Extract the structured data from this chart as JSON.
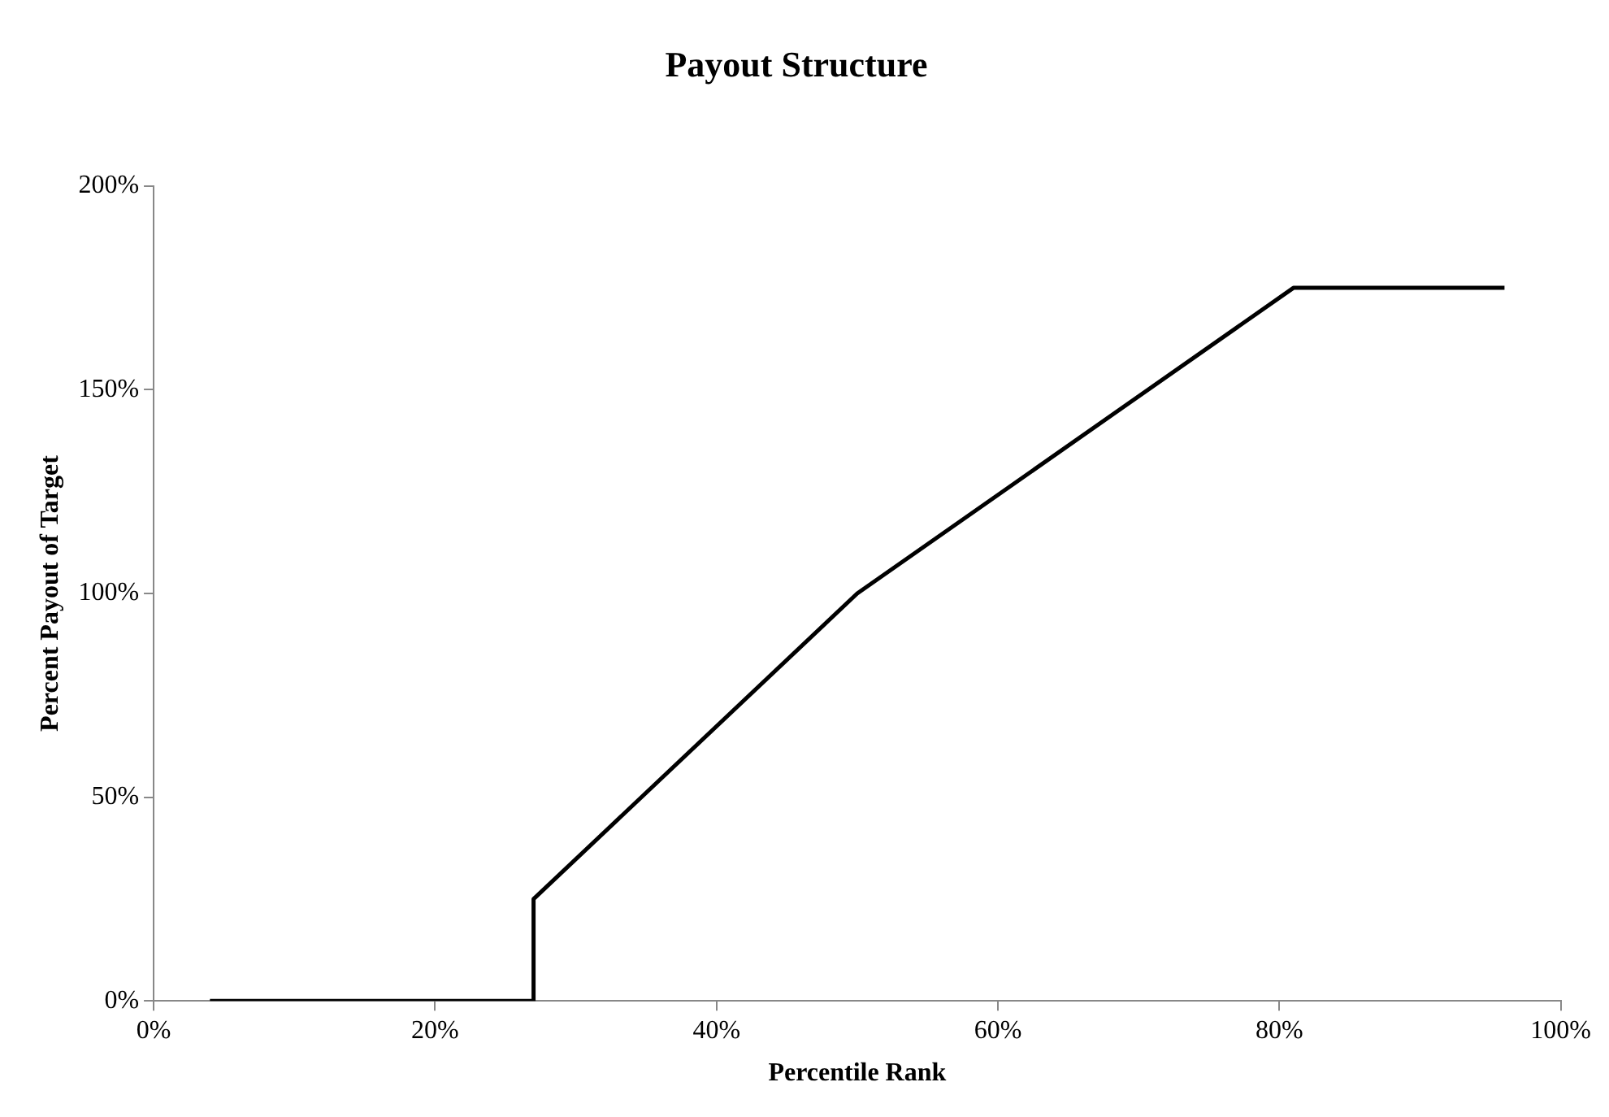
{
  "chart_data": {
    "type": "line",
    "title": "Payout Structure",
    "xlabel": "Percentile Rank",
    "ylabel": "Percent Payout of Target",
    "x": [
      4,
      27,
      27,
      50,
      81,
      96
    ],
    "series": [
      {
        "color": "#000000",
        "values": [
          0,
          0,
          25,
          100,
          175,
          175
        ]
      }
    ],
    "xlim": [
      0,
      100
    ],
    "xticks": [
      {
        "value": 0,
        "label": "0%"
      },
      {
        "value": 20,
        "label": "20%"
      },
      {
        "value": 40,
        "label": "40%"
      },
      {
        "value": 60,
        "label": "60%"
      },
      {
        "value": 80,
        "label": "80%"
      },
      {
        "value": 100,
        "label": "100%"
      }
    ],
    "ylim": [
      0,
      200
    ],
    "yticks": [
      {
        "value": 0,
        "label": "0%"
      },
      {
        "value": 50,
        "label": "50%"
      },
      {
        "value": 100,
        "label": "100%"
      },
      {
        "value": 150,
        "label": "150%"
      },
      {
        "value": 200,
        "label": "200%"
      }
    ],
    "grid": false,
    "legend": false,
    "marker": "none",
    "line_style": "solid"
  }
}
